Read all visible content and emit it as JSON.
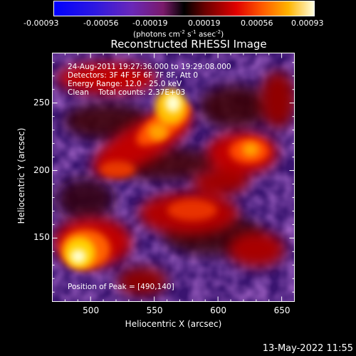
{
  "chart_data": {
    "type": "heatmap",
    "title": "Reconstructed RHESSI Image",
    "xlabel": "Heliocentric X (arcsec)",
    "ylabel": "Heliocentric Y (arcsec)",
    "xlim": [
      470,
      660
    ],
    "ylim": [
      103,
      287
    ],
    "x_ticks": [
      500,
      550,
      600,
      650
    ],
    "y_ticks": [
      150,
      200,
      250
    ],
    "colorbar": {
      "ticks": [
        "-0.00093",
        "-0.00056",
        "-0.00019",
        "0.00019",
        "0.00056",
        "0.00093"
      ],
      "unit_label": "(photons cm",
      "unit_sup1": "-2",
      "unit_mid": " s",
      "unit_sup2": "-1",
      "unit_end": " asec",
      "unit_sup3": "-2",
      "unit_close": ")",
      "range": [
        -0.00093,
        0.00093
      ]
    },
    "annotations": {
      "line1": "24-Aug-2011 19:27:36.000 to 19:29:08.000",
      "line2": "Detectors: 3F 4F 5F 6F 7F 8F, Att 0",
      "line3": "Energy Range: 12.0 - 25.0 keV",
      "line4": "Clean    Total counts: 2.37E+03",
      "peak": "Position of Peak = [490,140]"
    },
    "peak_position": [
      490,
      140
    ],
    "timestamp": "13-May-2022 11:55"
  }
}
